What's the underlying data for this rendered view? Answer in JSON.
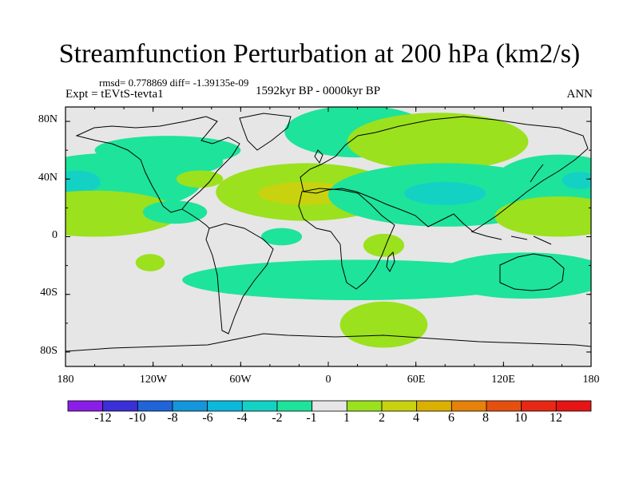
{
  "title": "Streamfunction Perturbation at 200 hPa (km2/s)",
  "stats_line": "rmsd= 0.778869 diff= -1.39135e-09",
  "experiment": "Expt = tEVtS-tevta1",
  "period": "1592kyr BP - 0000kyr BP",
  "season": "ANN",
  "lat_ticks": [
    "80N",
    "40N",
    "0",
    "40S",
    "80S"
  ],
  "lon_ticks": [
    "180",
    "120W",
    "60W",
    "0",
    "60E",
    "120E",
    "180"
  ],
  "colorbar": {
    "labels": [
      "-12",
      "-10",
      "-8",
      "-6",
      "-4",
      "-2",
      "-1",
      "1",
      "2",
      "4",
      "6",
      "8",
      "10",
      "12"
    ],
    "colors": [
      "#8a1ee8",
      "#3b2fd8",
      "#1f64d8",
      "#1496dc",
      "#0ab9dc",
      "#13d2c4",
      "#1ee39b",
      "#e6e6e6",
      "#9be11e",
      "#c8d20f",
      "#dcb000",
      "#e6820a",
      "#e6500f",
      "#e62814",
      "#e61414"
    ]
  },
  "anomaly_colors": {
    "neutral": "#e6e6e6",
    "neg_weak": "#1ee39b",
    "neg_strong": "#13d2c4",
    "pos_weak": "#9be11e",
    "pos_strong": "#c8d20f"
  },
  "field": {
    "type": "filled-contour-map",
    "projection": "cylindrical-equidistant",
    "lon_range": [
      -180,
      180
    ],
    "lat_range": [
      -90,
      90
    ],
    "regions": [
      {
        "name": "n-pacific-east",
        "level": -1,
        "center": [
          -149,
          38
        ],
        "size": [
          62,
          20
        ]
      },
      {
        "name": "n-pacific-core",
        "level": -2,
        "center": [
          -172,
          38
        ],
        "size": [
          16,
          8
        ]
      },
      {
        "name": "n-pacific-west",
        "level": -1,
        "center": [
          158,
          39
        ],
        "size": [
          44,
          18
        ]
      },
      {
        "name": "n-pacific-west-core",
        "level": -2,
        "center": [
          172,
          39
        ],
        "size": [
          12,
          6
        ]
      },
      {
        "name": "n-america-north",
        "level": -1,
        "center": [
          -110,
          60
        ],
        "size": [
          50,
          10
        ]
      },
      {
        "name": "canada-east",
        "level": -1,
        "center": [
          -94,
          52
        ],
        "size": [
          22,
          8
        ]
      },
      {
        "name": "great-lakes",
        "level": 1,
        "center": [
          -88,
          40
        ],
        "size": [
          16,
          6
        ]
      },
      {
        "name": "e-pacific-subtrop",
        "level": 1,
        "center": [
          -160,
          16
        ],
        "size": [
          58,
          16
        ]
      },
      {
        "name": "mexico",
        "level": -1,
        "center": [
          -105,
          17
        ],
        "size": [
          22,
          8
        ]
      },
      {
        "name": "atlantic-n",
        "level": 1,
        "center": [
          -15,
          31
        ],
        "size": [
          62,
          20
        ]
      },
      {
        "name": "atlantic-n-core",
        "level": 2,
        "center": [
          -16,
          30
        ],
        "size": [
          32,
          8
        ]
      },
      {
        "name": "w-africa-eq",
        "level": -1,
        "center": [
          -32,
          0
        ],
        "size": [
          14,
          6
        ]
      },
      {
        "name": "scandinavia",
        "level": -1,
        "center": [
          20,
          73
        ],
        "size": [
          50,
          18
        ]
      },
      {
        "name": "siberia",
        "level": 1,
        "center": [
          75,
          66
        ],
        "size": [
          62,
          20
        ]
      },
      {
        "name": "s-asia",
        "level": -1,
        "center": [
          80,
          29
        ],
        "size": [
          80,
          22
        ]
      },
      {
        "name": "s-asia-core",
        "level": -2,
        "center": [
          80,
          30
        ],
        "size": [
          28,
          8
        ]
      },
      {
        "name": "e-africa",
        "level": 1,
        "center": [
          38,
          -6
        ],
        "size": [
          14,
          8
        ]
      },
      {
        "name": "w-pacific-subtrop",
        "level": 1,
        "center": [
          158,
          14
        ],
        "size": [
          44,
          14
        ]
      },
      {
        "name": "s-atlantic",
        "level": -1,
        "center": [
          20,
          -30
        ],
        "size": [
          120,
          14
        ]
      },
      {
        "name": "australia",
        "level": -1,
        "center": [
          135,
          -27
        ],
        "size": [
          60,
          16
        ]
      },
      {
        "name": "s-pacific-small",
        "level": 1,
        "center": [
          -122,
          -18
        ],
        "size": [
          10,
          6
        ]
      },
      {
        "name": "s-ocean",
        "level": 1,
        "center": [
          38,
          -61
        ],
        "size": [
          30,
          16
        ]
      }
    ]
  },
  "coastline_note": "continental outlines"
}
